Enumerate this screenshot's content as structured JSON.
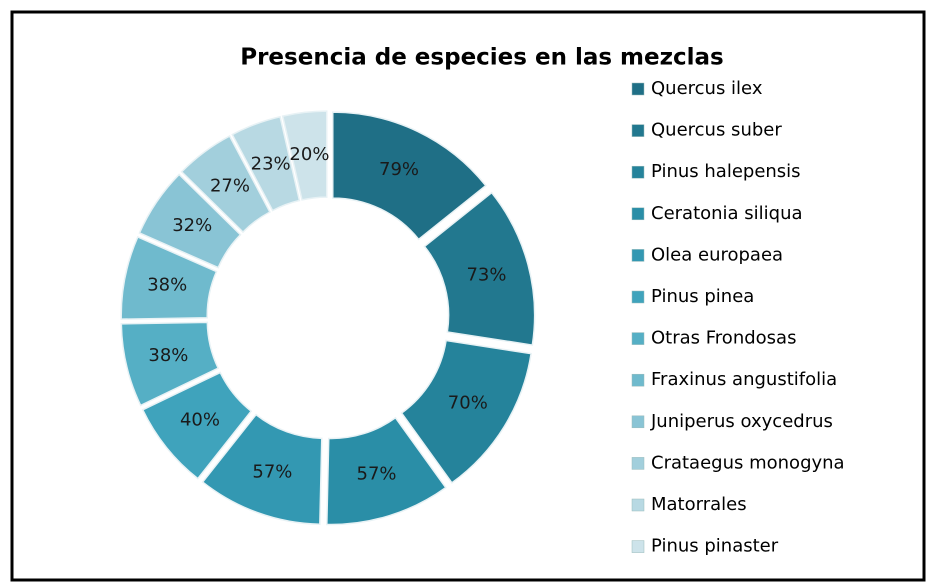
{
  "chart_data": {
    "type": "donut",
    "title": "Presencia de especies en las mezclas",
    "categories": [
      "Quercus ilex",
      "Quercus suber",
      "Pinus halepensis",
      "Ceratonia siliqua",
      "Olea europaea",
      "Pinus pinea",
      "Otras Frondosas",
      "Fraxinus angustifolia",
      "Juniperus oxycedrus",
      "Crataegus monogyna",
      "Matorrales",
      "Pinus pinaster"
    ],
    "values": [
      79,
      73,
      70,
      57,
      57,
      40,
      38,
      38,
      32,
      27,
      23,
      20
    ],
    "value_labels": [
      "79%",
      "73%",
      "70%",
      "57%",
      "57%",
      "40%",
      "38%",
      "38%",
      "32%",
      "27%",
      "23%",
      "20%"
    ],
    "colors": [
      "#1f6f86",
      "#22788f",
      "#25839b",
      "#2a8ea7",
      "#3398b2",
      "#3fa3bc",
      "#55afc5",
      "#6fbacd",
      "#89c4d5",
      "#a2cfdc",
      "#b8d9e3",
      "#cde3ea"
    ],
    "legend": "right"
  }
}
